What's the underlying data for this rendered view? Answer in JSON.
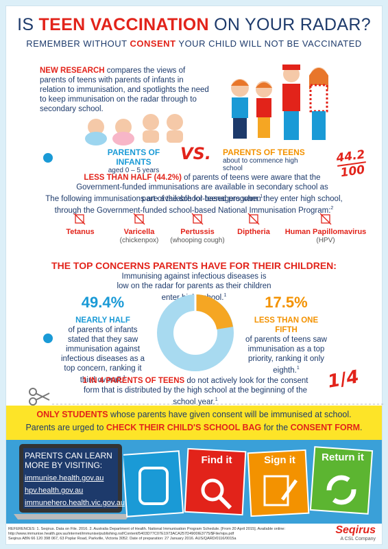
{
  "header": {
    "title": {
      "pre": "IS ",
      "highlight": "TEEN VACCINATION",
      "post": " ON YOUR RADAR?"
    },
    "subtitle": {
      "pre": "REMEMBER WITHOUT ",
      "highlight": "CONSENT",
      "post": " YOUR CHILD WILL NOT BE VACCINATED"
    }
  },
  "intro": {
    "highlight": "NEW RESEARCH",
    "text": " compares the views of parents of teens with parents of infants in relation to immunisation, and spotlights the need to keep immunisation on the radar through to secondary school."
  },
  "comparison": {
    "infants": {
      "label": "PARENTS OF INFANTS",
      "sub": "aged 0 – 5 years"
    },
    "vs": "VS.",
    "teens": {
      "label": "PARENTS OF TEENS",
      "sub": "about to commence high school"
    },
    "handwritten": {
      "top": "44.2",
      "bottom": "100"
    }
  },
  "awareness": {
    "highlight": "LESS THAN HALF (44.2%)",
    "text": " of parents of teens were aware that the Government-funded immunisations are available in secondary school as part of the school-based program.",
    "ref": "1"
  },
  "program": {
    "text": "The following immunisations are available for teenagers when they enter high school, through the Government-funded school-based National Immunisation Program:",
    "ref": "2"
  },
  "vaccines": [
    {
      "name": "Tetanus"
    },
    {
      "name": "Varicella",
      "note": "(chickenpox)"
    },
    {
      "name": "Pertussis",
      "note": "(whooping cough)"
    },
    {
      "name": "Diptheria"
    },
    {
      "name": "Human Papillomavirus",
      "note": "(HPV)"
    }
  ],
  "concerns": {
    "title": "THE TOP CONCERNS PARENTS HAVE FOR THEIR CHILDREN:",
    "text": "Immunising against infectious diseases is low on the radar for parents as their children enter high school.",
    "ref": "1"
  },
  "infants_stat": {
    "value": "49.4%",
    "headline": "NEARLY HALF",
    "text": "of parents of infants stated that they saw immunisation against infectious diseases as a top concern, ranking it third overall.",
    "ref": "1"
  },
  "teens_stat": {
    "value": "17.5%",
    "headline": "LESS THAN ONE FIFTH",
    "text": "of parents of teens saw immunisation as a top priority, ranking it only eighth.",
    "ref": "1"
  },
  "consent": {
    "highlight": "1 IN 4  PARENTS OF TEENS",
    "text": " do not actively look for the consent form that is distributed by the high school at the beginning of the school year.",
    "ref": "1",
    "handwritten": {
      "top": "1",
      "bottom": "4"
    }
  },
  "banner": {
    "line1": {
      "highlight": "ONLY STUDENTS",
      "text": " whose parents have given consent will be immunised at school."
    },
    "line2": {
      "pre": "Parents are urged to ",
      "highlight1": "CHECK THEIR CHILD'S SCHOOL BAG",
      "mid": " for the ",
      "highlight2": "CONSENT FORM",
      "post": "."
    }
  },
  "learn": {
    "title": "PARENTS CAN LEARN MORE BY VISITING:",
    "links": [
      "immunise.health.gov.au",
      "hpv.health.gov.au",
      "immunehero.health.vic.gov.au"
    ]
  },
  "steps": [
    "Find it",
    "Sign it",
    "Return it"
  ],
  "references": {
    "text": "REFERENCES: 1. Seqirus. Data on File. 2016. 2. Australia Department of Health. National Immunisation Program Schedule. [From 20 April 2015]. Available online: http://www.immunise.health.gov.au/internet/immunise/publishing.nsf/Content/5403D77C07E1973ACA257D4900IE3775/$File/nips.pdf",
    "footer": "Seqirus ABN 66 120 398 067, 63 Poplar Road, Parkville, Victoria 3052. Date of preparation: 27 January 2016. AUS/QARD/0116/0015a"
  },
  "logo": {
    "name": "Seqirus",
    "tagline": "A CSL Company"
  }
}
